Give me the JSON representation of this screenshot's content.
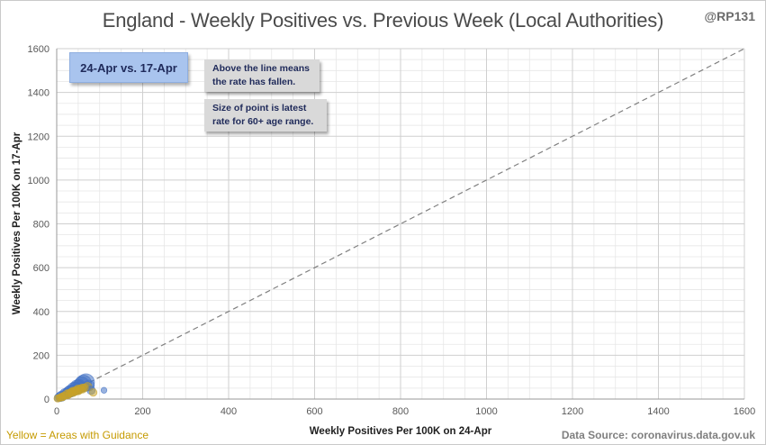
{
  "chart_data": {
    "type": "scatter",
    "title": "England - Weekly Positives vs. Previous Week (Local Authorities)",
    "xlabel": "Weekly Positives Per 100K on 24-Apr",
    "ylabel": "Weekly Positives Per 100K on 17-Apr",
    "xlim": [
      0,
      1600
    ],
    "ylim": [
      0,
      1600
    ],
    "xticks": [
      0,
      200,
      400,
      600,
      800,
      1000,
      1200,
      1400,
      1600
    ],
    "yticks": [
      0,
      200,
      400,
      600,
      800,
      1000,
      1200,
      1400,
      1600
    ],
    "grid": true,
    "reference_line": {
      "x": [
        0,
        1600
      ],
      "y": [
        0,
        1600
      ],
      "style": "dashed",
      "color": "#808080"
    },
    "colors": {
      "default": "#4472c4",
      "guidance": "#c9a227"
    },
    "points": [
      {
        "x": 2,
        "y": 3,
        "size": 9,
        "group": "guidance"
      },
      {
        "x": 4,
        "y": 6,
        "size": 12,
        "group": "default"
      },
      {
        "x": 6,
        "y": 5,
        "size": 8,
        "group": "guidance"
      },
      {
        "x": 8,
        "y": 10,
        "size": 15,
        "group": "default"
      },
      {
        "x": 10,
        "y": 8,
        "size": 10,
        "group": "guidance"
      },
      {
        "x": 12,
        "y": 14,
        "size": 18,
        "group": "default"
      },
      {
        "x": 14,
        "y": 11,
        "size": 11,
        "group": "guidance"
      },
      {
        "x": 16,
        "y": 18,
        "size": 13,
        "group": "default"
      },
      {
        "x": 18,
        "y": 15,
        "size": 9,
        "group": "guidance"
      },
      {
        "x": 20,
        "y": 24,
        "size": 20,
        "group": "default"
      },
      {
        "x": 22,
        "y": 19,
        "size": 12,
        "group": "guidance"
      },
      {
        "x": 24,
        "y": 28,
        "size": 16,
        "group": "default"
      },
      {
        "x": 26,
        "y": 22,
        "size": 14,
        "group": "guidance"
      },
      {
        "x": 28,
        "y": 32,
        "size": 22,
        "group": "default"
      },
      {
        "x": 30,
        "y": 26,
        "size": 10,
        "group": "guidance"
      },
      {
        "x": 32,
        "y": 36,
        "size": 25,
        "group": "default"
      },
      {
        "x": 34,
        "y": 30,
        "size": 12,
        "group": "guidance"
      },
      {
        "x": 36,
        "y": 40,
        "size": 18,
        "group": "default"
      },
      {
        "x": 38,
        "y": 33,
        "size": 15,
        "group": "guidance"
      },
      {
        "x": 40,
        "y": 46,
        "size": 30,
        "group": "default"
      },
      {
        "x": 42,
        "y": 36,
        "size": 11,
        "group": "guidance"
      },
      {
        "x": 44,
        "y": 50,
        "size": 24,
        "group": "default"
      },
      {
        "x": 46,
        "y": 38,
        "size": 13,
        "group": "guidance"
      },
      {
        "x": 48,
        "y": 55,
        "size": 35,
        "group": "default"
      },
      {
        "x": 50,
        "y": 42,
        "size": 16,
        "group": "guidance"
      },
      {
        "x": 52,
        "y": 60,
        "size": 28,
        "group": "default"
      },
      {
        "x": 55,
        "y": 45,
        "size": 12,
        "group": "guidance"
      },
      {
        "x": 58,
        "y": 66,
        "size": 40,
        "group": "default"
      },
      {
        "x": 60,
        "y": 48,
        "size": 14,
        "group": "guidance"
      },
      {
        "x": 62,
        "y": 72,
        "size": 45,
        "group": "default"
      },
      {
        "x": 65,
        "y": 52,
        "size": 10,
        "group": "guidance"
      },
      {
        "x": 68,
        "y": 76,
        "size": 50,
        "group": "default"
      },
      {
        "x": 72,
        "y": 56,
        "size": 13,
        "group": "guidance"
      },
      {
        "x": 75,
        "y": 62,
        "size": 20,
        "group": "default"
      },
      {
        "x": 80,
        "y": 40,
        "size": 12,
        "group": "default"
      },
      {
        "x": 85,
        "y": 30,
        "size": 10,
        "group": "guidance"
      },
      {
        "x": 110,
        "y": 40,
        "size": 6,
        "group": "default"
      }
    ]
  },
  "annotations": {
    "date_tag": "24-Apr vs. 17-Apr",
    "note1_line1": "Above the line means",
    "note1_line2": "the rate has fallen.",
    "note2_line1": "Size of point is latest",
    "note2_line2": "rate for 60+ age range."
  },
  "handle": "@RP131",
  "footer": {
    "legend": "Yellow = Areas with Guidance",
    "source": "Data Source: coronavirus.data.gov.uk"
  }
}
